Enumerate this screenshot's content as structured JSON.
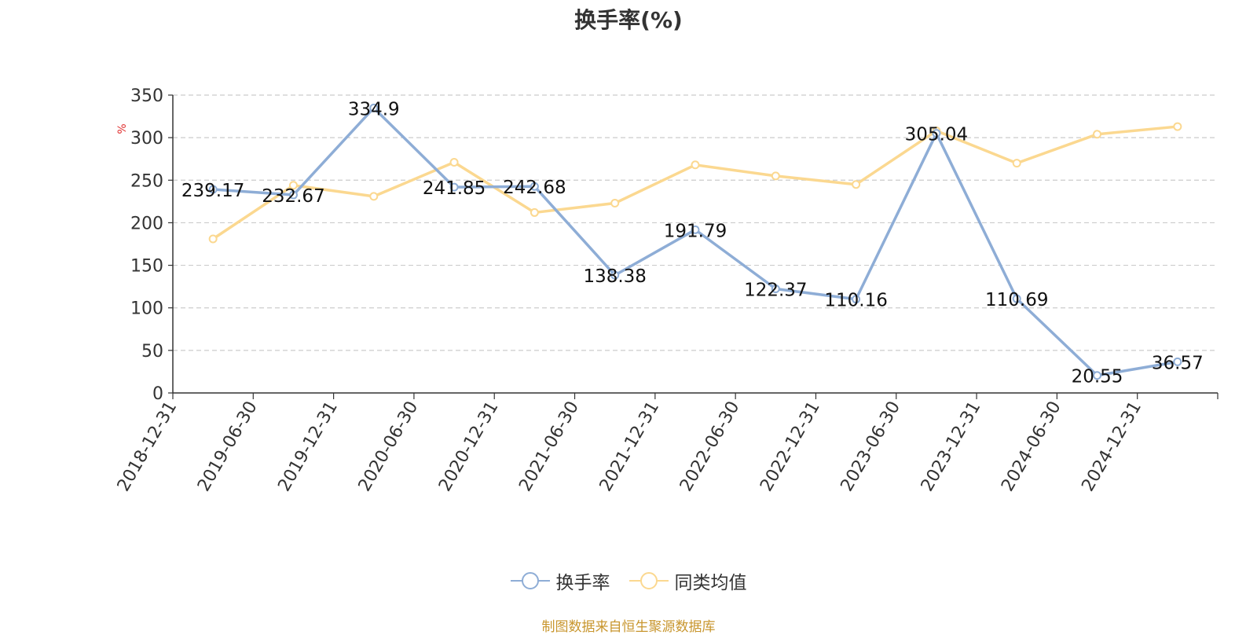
{
  "chart_data": {
    "type": "line",
    "title": "换手率(%)",
    "ylabel": "%",
    "categories": [
      "2018-12-31",
      "2019-06-30",
      "2019-12-31",
      "2020-06-30",
      "2020-12-31",
      "2021-06-30",
      "2021-12-31",
      "2022-06-30",
      "2022-12-31",
      "2023-06-30",
      "2023-12-31",
      "2024-06-30",
      "2024-12-31"
    ],
    "ylim": [
      0,
      350
    ],
    "yticks": [
      0,
      50,
      100,
      150,
      200,
      250,
      300,
      350
    ],
    "grid": true,
    "legend_position": "bottom",
    "series": [
      {
        "name": "换手率",
        "color": "#8eadd6",
        "values": [
          239.17,
          232.67,
          334.9,
          241.85,
          242.68,
          138.38,
          191.79,
          122.37,
          110.16,
          305.04,
          110.69,
          20.55,
          36.57
        ],
        "labels": [
          "239.17",
          "232.67",
          "334.9",
          "241.85",
          "242.68",
          "138.38",
          "191.79",
          "122.37",
          "110.16",
          "305.04",
          "110.69",
          "20.55",
          "36.57"
        ]
      },
      {
        "name": "同类均值",
        "color": "#fbd890",
        "values": [
          181,
          244,
          231,
          271,
          212,
          223,
          268,
          255,
          245,
          308,
          270,
          304,
          313
        ]
      }
    ]
  },
  "legend": {
    "items": [
      "换手率",
      "同类均值"
    ]
  },
  "source": "制图数据来自恒生聚源数据库"
}
